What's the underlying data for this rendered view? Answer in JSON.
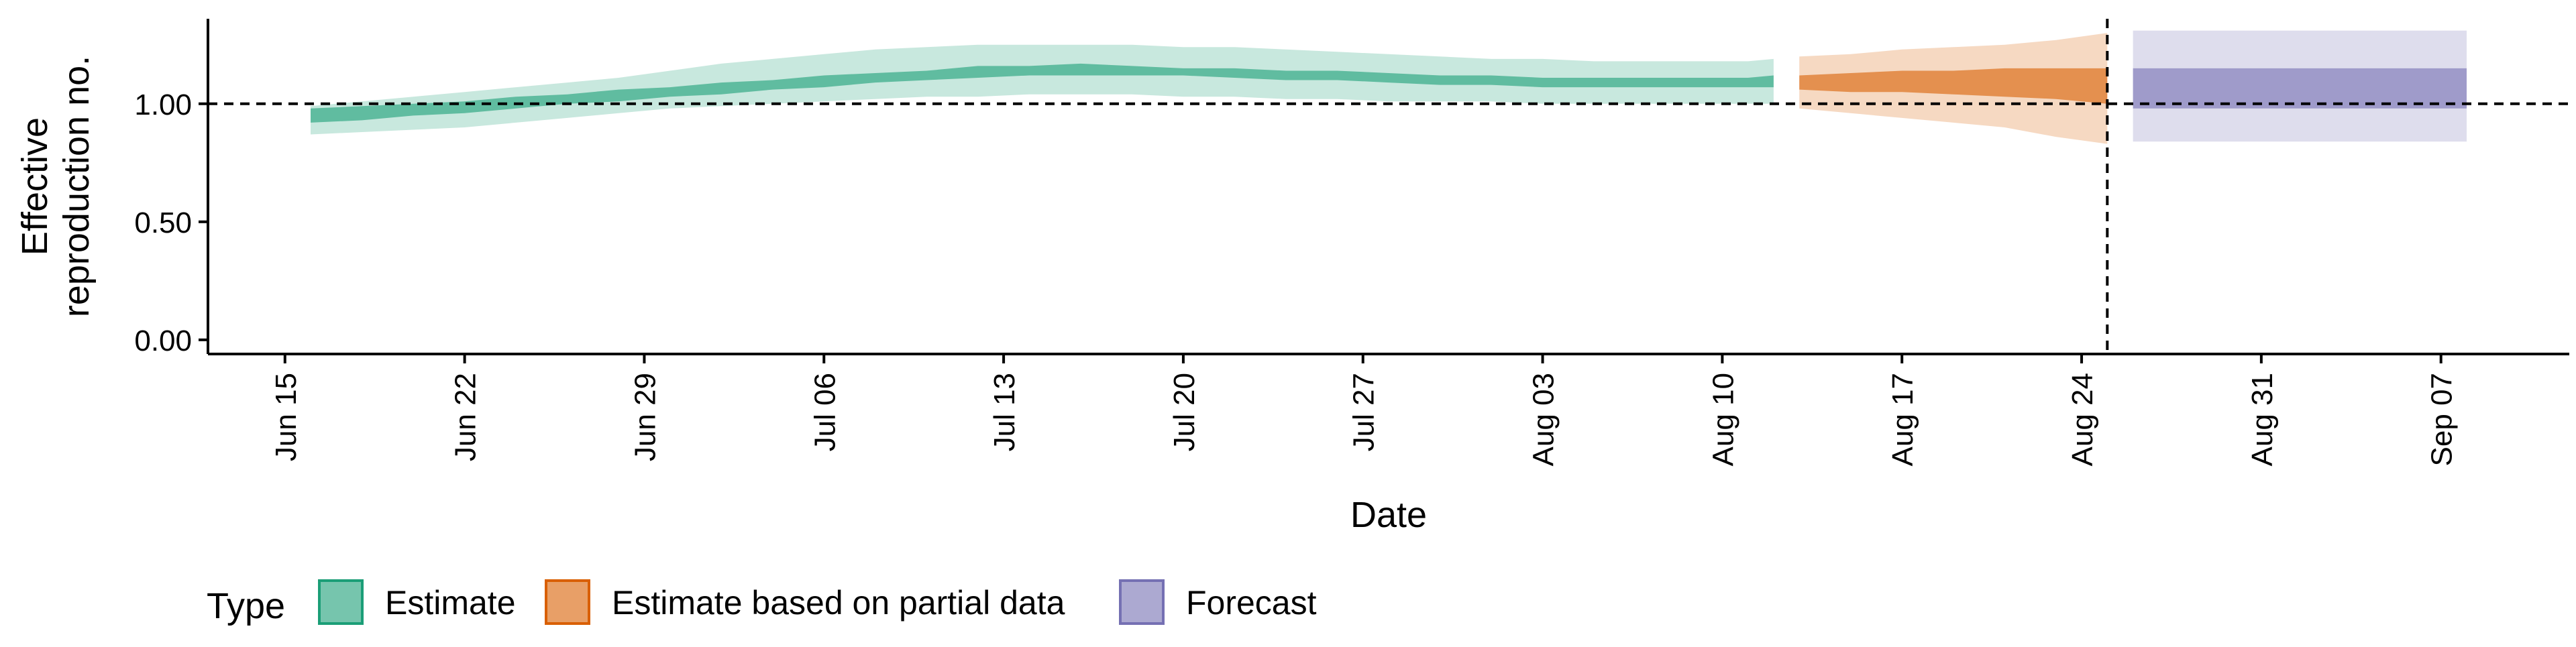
{
  "chart_data": {
    "type": "area",
    "xlabel": "Date",
    "ylabel_lines": [
      "Effective",
      "reproduction no."
    ],
    "x_ticks": [
      {
        "date": "2020-06-15",
        "label": "Jun 15"
      },
      {
        "date": "2020-06-22",
        "label": "Jun 22"
      },
      {
        "date": "2020-06-29",
        "label": "Jun 29"
      },
      {
        "date": "2020-07-06",
        "label": "Jul 06"
      },
      {
        "date": "2020-07-13",
        "label": "Jul 13"
      },
      {
        "date": "2020-07-20",
        "label": "Jul 20"
      },
      {
        "date": "2020-07-27",
        "label": "Jul 27"
      },
      {
        "date": "2020-08-03",
        "label": "Aug 03"
      },
      {
        "date": "2020-08-10",
        "label": "Aug 10"
      },
      {
        "date": "2020-08-17",
        "label": "Aug 17"
      },
      {
        "date": "2020-08-24",
        "label": "Aug 24"
      },
      {
        "date": "2020-08-31",
        "label": "Aug 31"
      },
      {
        "date": "2020-09-07",
        "label": "Sep 07"
      }
    ],
    "y_ticks": [
      {
        "value": 0.0,
        "label": "0.00"
      },
      {
        "value": 0.5,
        "label": "0.50"
      },
      {
        "value": 1.0,
        "label": "1.00"
      }
    ],
    "xlim": [
      "2020-06-12",
      "2020-09-12"
    ],
    "ylim": [
      -0.06,
      1.36
    ],
    "reference_hline": 1.0,
    "reference_vline": "2020-08-25",
    "grid": false,
    "legend": {
      "title": "Type",
      "position": "bottom-left",
      "items": [
        {
          "label": "Estimate",
          "type": "estimate"
        },
        {
          "label": "Estimate based on partial data",
          "type": "partial"
        },
        {
          "label": "Forecast",
          "type": "forecast"
        }
      ]
    },
    "colors": {
      "estimate": "#1B9E77",
      "partial": "#D95F02",
      "forecast": "#7570B3"
    },
    "series": [
      {
        "type": "estimate",
        "x": [
          "2020-06-16",
          "2020-06-18",
          "2020-06-20",
          "2020-06-22",
          "2020-06-24",
          "2020-06-26",
          "2020-06-28",
          "2020-06-30",
          "2020-07-02",
          "2020-07-04",
          "2020-07-06",
          "2020-07-08",
          "2020-07-10",
          "2020-07-12",
          "2020-07-14",
          "2020-07-16",
          "2020-07-18",
          "2020-07-20",
          "2020-07-22",
          "2020-07-24",
          "2020-07-26",
          "2020-07-28",
          "2020-07-30",
          "2020-08-01",
          "2020-08-03",
          "2020-08-05",
          "2020-08-07",
          "2020-08-09",
          "2020-08-11",
          "2020-08-12"
        ],
        "outer_lower": [
          0.87,
          0.88,
          0.89,
          0.9,
          0.92,
          0.94,
          0.96,
          0.98,
          0.99,
          1.0,
          1.01,
          1.02,
          1.03,
          1.03,
          1.04,
          1.04,
          1.04,
          1.03,
          1.03,
          1.02,
          1.02,
          1.01,
          1.01,
          1.01,
          1.0,
          1.0,
          1.0,
          1.0,
          1.0,
          1.0
        ],
        "inner_lower": [
          0.92,
          0.93,
          0.95,
          0.96,
          0.98,
          1.0,
          1.01,
          1.03,
          1.04,
          1.06,
          1.07,
          1.09,
          1.1,
          1.11,
          1.12,
          1.12,
          1.12,
          1.12,
          1.11,
          1.1,
          1.1,
          1.09,
          1.08,
          1.08,
          1.07,
          1.07,
          1.07,
          1.07,
          1.07,
          1.07
        ],
        "inner_upper": [
          0.98,
          0.99,
          1.0,
          1.01,
          1.03,
          1.04,
          1.06,
          1.07,
          1.09,
          1.1,
          1.12,
          1.13,
          1.14,
          1.16,
          1.16,
          1.17,
          1.16,
          1.15,
          1.15,
          1.14,
          1.14,
          1.13,
          1.12,
          1.12,
          1.11,
          1.11,
          1.11,
          1.11,
          1.11,
          1.12
        ],
        "outer_upper": [
          0.99,
          1.01,
          1.03,
          1.05,
          1.07,
          1.09,
          1.11,
          1.14,
          1.17,
          1.19,
          1.21,
          1.23,
          1.24,
          1.25,
          1.25,
          1.25,
          1.25,
          1.24,
          1.24,
          1.23,
          1.22,
          1.21,
          1.2,
          1.19,
          1.19,
          1.18,
          1.18,
          1.18,
          1.18,
          1.19
        ]
      },
      {
        "type": "partial",
        "x": [
          "2020-08-13",
          "2020-08-15",
          "2020-08-17",
          "2020-08-19",
          "2020-08-21",
          "2020-08-23",
          "2020-08-25"
        ],
        "outer_lower": [
          0.98,
          0.96,
          0.94,
          0.92,
          0.9,
          0.86,
          0.83
        ],
        "inner_lower": [
          1.06,
          1.05,
          1.05,
          1.04,
          1.03,
          1.02,
          1.0
        ],
        "inner_upper": [
          1.12,
          1.13,
          1.14,
          1.14,
          1.15,
          1.15,
          1.15
        ],
        "outer_upper": [
          1.2,
          1.21,
          1.23,
          1.24,
          1.25,
          1.27,
          1.3
        ]
      },
      {
        "type": "forecast",
        "x": [
          "2020-08-26",
          "2020-09-08"
        ],
        "outer_lower": [
          0.84,
          0.84
        ],
        "inner_lower": [
          0.98,
          0.98
        ],
        "inner_upper": [
          1.15,
          1.15
        ],
        "outer_upper": [
          1.31,
          1.31
        ]
      }
    ]
  }
}
